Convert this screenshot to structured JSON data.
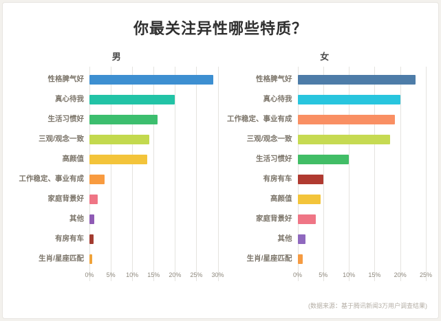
{
  "page": {
    "title": "你最关注异性哪些特质？",
    "source_note": "(数据来源：基于腾讯新闻3万用户调查结果)"
  },
  "chart_data": [
    {
      "type": "bar",
      "orientation": "horizontal",
      "title": "男",
      "categories": [
        "性格脾气好",
        "真心待我",
        "生活习惯好",
        "三观/观念一致",
        "高颜值",
        "工作稳定、事业有成",
        "家庭背景好",
        "其他",
        "有房有车",
        "生肖/星座匹配"
      ],
      "values": [
        29,
        20,
        16,
        14,
        13.5,
        3.5,
        2,
        1.2,
        1,
        0.6
      ],
      "colors": [
        "#3d8fd1",
        "#22c3a6",
        "#3cbe6e",
        "#c3d94e",
        "#f3c43a",
        "#f89b40",
        "#ef7585",
        "#8f5bb5",
        "#a33c30",
        "#f0a33a"
      ],
      "xlim": [
        0,
        30
      ],
      "xticks": [
        "0%",
        "5%",
        "10%",
        "15%",
        "20%",
        "25%",
        "30%"
      ],
      "grid": true,
      "legend": "none"
    },
    {
      "type": "bar",
      "orientation": "horizontal",
      "title": "女",
      "categories": [
        "性格脾气好",
        "真心待我",
        "工作稳定、事业有成",
        "三观/观念一致",
        "生活习惯好",
        "有房有车",
        "高颜值",
        "家庭背景好",
        "其他",
        "生肖/星座匹配"
      ],
      "values": [
        23,
        20,
        19,
        18,
        10,
        5,
        4.5,
        3.5,
        1.5,
        1
      ],
      "colors": [
        "#4d7ca8",
        "#28c5de",
        "#f98f63",
        "#c6da52",
        "#41bd66",
        "#b03a30",
        "#f3c43a",
        "#ef7585",
        "#8f68be",
        "#f59b42"
      ],
      "xlim": [
        0,
        25
      ],
      "xticks": [
        "0%",
        "5%",
        "10%",
        "15%",
        "20%",
        "25%"
      ],
      "grid": true,
      "legend": "none"
    }
  ]
}
